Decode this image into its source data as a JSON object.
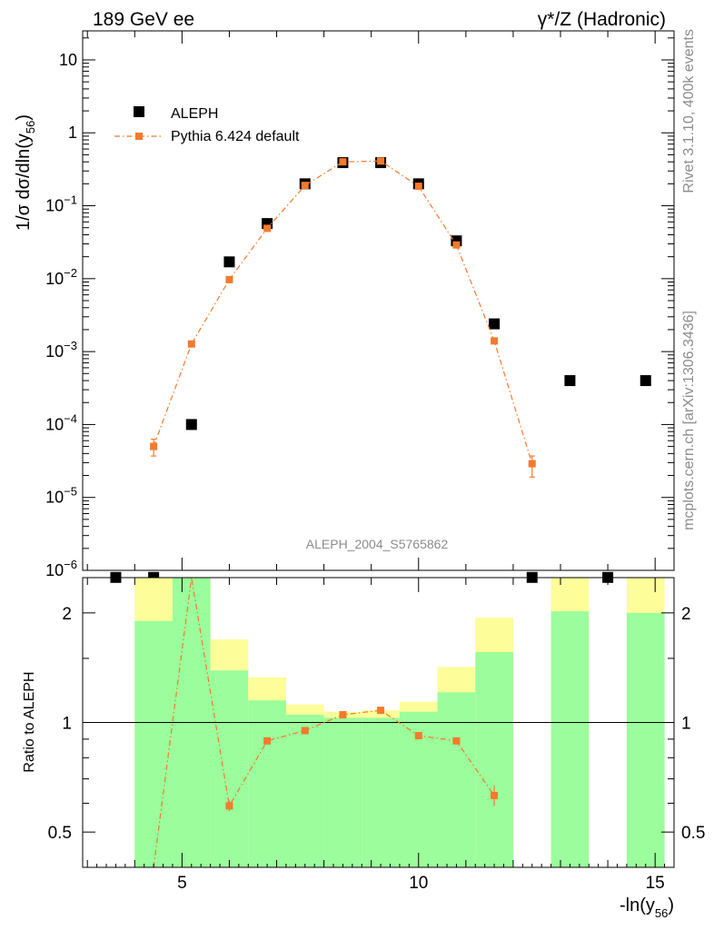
{
  "header": {
    "left_title": "189 GeV ee",
    "right_title": "γ*/Z (Hadronic)"
  },
  "side_labels": {
    "top": "Rivet 3.1.10,  400k events",
    "bottom": "mcplots.cern.ch [arXiv:1306.3436]"
  },
  "analysis_id": "ALEPH_2004_S5765862",
  "chart_data": [
    {
      "type": "scatter",
      "panel": "main",
      "ylabel": "1/σ  dσ/dln(y56)",
      "yscale": "log",
      "ylim": [
        1e-06,
        25
      ],
      "xlim": [
        2.9,
        15.4
      ],
      "legend_position": "top-left",
      "legend": [
        "ALEPH",
        "Pythia 6.424 default"
      ],
      "series": [
        {
          "name": "ALEPH",
          "color": "#000000",
          "marker": "square",
          "x": [
            3.6,
            4.4,
            5.2,
            6.0,
            6.8,
            7.6,
            8.4,
            9.2,
            10.0,
            10.8,
            11.6,
            12.4,
            13.2,
            14.0,
            14.8
          ],
          "y": [
            8e-07,
            8e-07,
            0.0001,
            0.017,
            0.057,
            0.2,
            0.39,
            0.39,
            0.2,
            0.033,
            0.0024,
            8e-07,
            0.0004,
            8e-07,
            0.0004
          ]
        },
        {
          "name": "Pythia 6.424 default",
          "color": "#f47a2c",
          "marker": "square-small",
          "line": "dash-dot",
          "x": [
            4.4,
            5.2,
            6.0,
            6.8,
            7.6,
            8.4,
            9.2,
            10.0,
            10.8,
            11.6,
            12.4
          ],
          "y": [
            5e-05,
            0.00127,
            0.0097,
            0.049,
            0.19,
            0.4,
            0.41,
            0.185,
            0.029,
            0.0014,
            2.9e-05
          ],
          "err_lo": [
            1.3e-05,
            0,
            0,
            0,
            0,
            0,
            0,
            0,
            0,
            0,
            1e-05
          ],
          "err_hi": [
            1.3e-05,
            0,
            0,
            0,
            0,
            0,
            0,
            0,
            0,
            0,
            8e-06
          ]
        }
      ]
    },
    {
      "type": "line",
      "panel": "ratio",
      "xlabel": "-ln(y56)",
      "ylabel": "Ratio to ALEPH",
      "yscale": "log",
      "ylim": [
        0.4,
        2.5
      ],
      "xlim": [
        2.9,
        15.4
      ],
      "x_ticks": [
        5,
        10,
        15
      ],
      "y_ticks": [
        0.5,
        1,
        2
      ],
      "bands": {
        "bin_lo": [
          4.0,
          4.8,
          5.6,
          6.4,
          7.2,
          8.0,
          8.8,
          9.6,
          10.4,
          11.2,
          12.8,
          14.4
        ],
        "bin_hi": [
          4.8,
          5.6,
          6.4,
          7.2,
          8.0,
          8.8,
          9.6,
          10.4,
          11.2,
          12.0,
          13.6,
          15.2
        ],
        "green_lo": [
          0.4,
          0.4,
          0.4,
          0.4,
          0.4,
          0.4,
          0.4,
          0.4,
          0.4,
          0.4,
          0.4,
          0.4
        ],
        "green_hi": [
          1.9,
          2.5,
          1.39,
          1.15,
          1.05,
          1.03,
          1.03,
          1.07,
          1.21,
          1.56,
          2.02,
          2.0
        ],
        "yellow_lo": [
          0.4,
          0.4,
          0.73,
          0.78,
          0.93,
          0.95,
          0.94,
          0.92,
          0.68,
          0.45,
          0.4,
          0.4
        ],
        "yellow_hi": [
          2.5,
          2.5,
          1.69,
          1.33,
          1.12,
          1.07,
          1.08,
          1.14,
          1.42,
          1.94,
          2.5,
          2.5
        ],
        "green_color": "#9bfd9b",
        "yellow_color": "#fdfd99"
      },
      "ratio_series": {
        "name": "Pythia 6.424 default",
        "color": "#f47a2c",
        "x": [
          4.4,
          5.2,
          6.0,
          6.8,
          7.6,
          8.4,
          9.2,
          10.0,
          10.8,
          11.6
        ],
        "y": [
          0.2,
          5.5,
          0.59,
          0.89,
          0.95,
          1.05,
          1.08,
          0.92,
          0.89,
          0.63
        ],
        "err_lo": [
          0,
          0,
          0.02,
          0,
          0,
          0,
          0,
          0,
          0,
          0.04
        ],
        "err_hi": [
          0,
          0,
          0.02,
          0,
          0,
          0,
          0,
          0,
          0,
          0.04
        ]
      }
    }
  ]
}
